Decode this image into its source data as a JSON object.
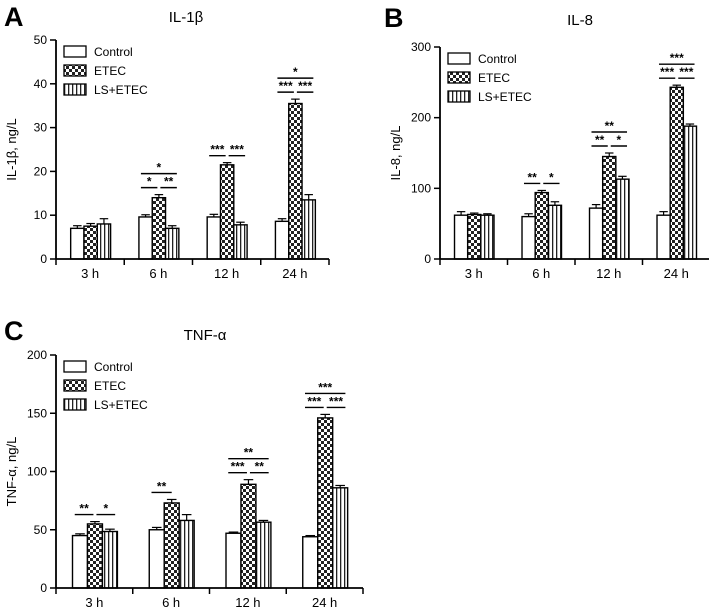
{
  "chart_data": [
    {
      "panel": "A",
      "type": "bar",
      "title": "IL-1β",
      "ylabel": "IL-1β, ng/L",
      "xlabel": "",
      "ylim": [
        0,
        50
      ],
      "yticks": [
        0,
        10,
        20,
        30,
        40,
        50
      ],
      "categories": [
        "3 h",
        "6 h",
        "12 h",
        "24 h"
      ],
      "legend_position": "top-left",
      "series": [
        {
          "name": "Control",
          "pattern": "white",
          "values": [
            7,
            9.6,
            9.6,
            8.6
          ],
          "errors": [
            0.6,
            0.5,
            0.6,
            0.6
          ]
        },
        {
          "name": "ETEC",
          "pattern": "checker",
          "values": [
            7.5,
            14,
            21.5,
            35.5
          ],
          "errors": [
            0.6,
            0.7,
            0.5,
            1.0
          ]
        },
        {
          "name": "LS+ETEC",
          "pattern": "striped",
          "values": [
            8,
            7,
            7.8,
            13.5
          ],
          "errors": [
            1.2,
            0.6,
            0.6,
            1.2
          ]
        }
      ],
      "significance": [
        {
          "category": "6 h",
          "from": 0,
          "to": 1,
          "level": 0,
          "label": "*"
        },
        {
          "category": "6 h",
          "from": 1,
          "to": 2,
          "level": 0,
          "label": "**"
        },
        {
          "category": "6 h",
          "from": 0,
          "to": 2,
          "level": 1,
          "label": "*"
        },
        {
          "category": "12 h",
          "from": 0,
          "to": 1,
          "level": 0,
          "label": "***"
        },
        {
          "category": "12 h",
          "from": 1,
          "to": 2,
          "level": 0,
          "label": "***"
        },
        {
          "category": "24 h",
          "from": 0,
          "to": 1,
          "level": 0,
          "label": "***"
        },
        {
          "category": "24 h",
          "from": 1,
          "to": 2,
          "level": 0,
          "label": "***"
        },
        {
          "category": "24 h",
          "from": 0,
          "to": 2,
          "level": 1,
          "label": "*"
        }
      ]
    },
    {
      "panel": "B",
      "type": "bar",
      "title": "IL-8",
      "ylabel": "IL-8, ng/L",
      "xlabel": "",
      "ylim": [
        0,
        300
      ],
      "yticks": [
        0,
        100,
        200,
        300
      ],
      "categories": [
        "3 h",
        "6 h",
        "12 h",
        "24 h"
      ],
      "legend_position": "top-left",
      "series": [
        {
          "name": "Control",
          "pattern": "white",
          "values": [
            62,
            60,
            72,
            62
          ],
          "errors": [
            5,
            4,
            5,
            5
          ]
        },
        {
          "name": "ETEC",
          "pattern": "checker",
          "values": [
            63,
            94,
            145,
            243
          ],
          "errors": [
            2,
            3,
            5,
            3
          ]
        },
        {
          "name": "LS+ETEC",
          "pattern": "striped",
          "values": [
            62,
            76,
            113,
            188
          ],
          "errors": [
            2,
            5,
            4,
            3
          ]
        }
      ],
      "significance": [
        {
          "category": "6 h",
          "from": 0,
          "to": 1,
          "level": 0,
          "label": "**"
        },
        {
          "category": "6 h",
          "from": 1,
          "to": 2,
          "level": 0,
          "label": "*"
        },
        {
          "category": "12 h",
          "from": 0,
          "to": 1,
          "level": 0,
          "label": "**"
        },
        {
          "category": "12 h",
          "from": 1,
          "to": 2,
          "level": 0,
          "label": "*"
        },
        {
          "category": "12 h",
          "from": 0,
          "to": 2,
          "level": 1,
          "label": "**"
        },
        {
          "category": "24 h",
          "from": 0,
          "to": 1,
          "level": 0,
          "label": "***"
        },
        {
          "category": "24 h",
          "from": 1,
          "to": 2,
          "level": 0,
          "label": "***"
        },
        {
          "category": "24 h",
          "from": 0,
          "to": 2,
          "level": 1,
          "label": "***"
        }
      ]
    },
    {
      "panel": "C",
      "type": "bar",
      "title": "TNF-α",
      "ylabel": "TNF-α, ng/L",
      "xlabel": "",
      "ylim": [
        0,
        200
      ],
      "yticks": [
        0,
        50,
        100,
        150,
        200
      ],
      "categories": [
        "3 h",
        "6 h",
        "12 h",
        "24 h"
      ],
      "legend_position": "top-left",
      "series": [
        {
          "name": "Control",
          "pattern": "white",
          "values": [
            45,
            50,
            47,
            44
          ],
          "errors": [
            1.5,
            2,
            1,
            1
          ]
        },
        {
          "name": "ETEC",
          "pattern": "checker",
          "values": [
            55,
            73,
            89,
            146
          ],
          "errors": [
            2,
            3,
            4,
            3
          ]
        },
        {
          "name": "LS+ETEC",
          "pattern": "striped",
          "values": [
            48.5,
            58,
            56.5,
            86
          ],
          "errors": [
            2,
            5,
            1.5,
            2
          ]
        }
      ],
      "significance": [
        {
          "category": "3 h",
          "from": 0,
          "to": 1,
          "level": 0,
          "label": "**"
        },
        {
          "category": "3 h",
          "from": 1,
          "to": 2,
          "level": 0,
          "label": "*"
        },
        {
          "category": "6 h",
          "from": 0,
          "to": 1,
          "level": 0,
          "label": "**"
        },
        {
          "category": "12 h",
          "from": 0,
          "to": 1,
          "level": 0,
          "label": "***"
        },
        {
          "category": "12 h",
          "from": 1,
          "to": 2,
          "level": 0,
          "label": "**"
        },
        {
          "category": "12 h",
          "from": 0,
          "to": 2,
          "level": 1,
          "label": "**"
        },
        {
          "category": "24 h",
          "from": 0,
          "to": 1,
          "level": 0,
          "label": "***"
        },
        {
          "category": "24 h",
          "from": 1,
          "to": 2,
          "level": 0,
          "label": "***"
        },
        {
          "category": "24 h",
          "from": 0,
          "to": 2,
          "level": 1,
          "label": "***"
        }
      ]
    }
  ]
}
